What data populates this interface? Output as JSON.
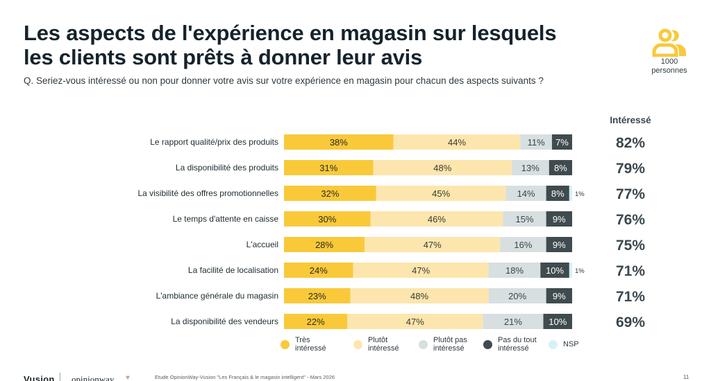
{
  "header": {
    "title_line1": "Les aspects de l'expérience en magasin sur lesquels",
    "title_line2": "les clients sont prêts à donner leur avis",
    "question": "Q. Seriez-vous intéressé ou non pour donner votre avis sur votre expérience en magasin pour chacun des aspects suivants ?",
    "sample_icon": "people-icon",
    "sample_count": "1000",
    "sample_unit": "personnes"
  },
  "colors": {
    "tres_interesse": "#f9c93a",
    "plutot_interesse": "#fde6ad",
    "plutot_pas_interesse": "#d7dfe0",
    "pas_du_tout_interesse": "#3f4b4f",
    "nsp": "#d4f1f9"
  },
  "chart_data": {
    "type": "bar",
    "orientation": "horizontal-stacked",
    "title": "Les aspects de l'expérience en magasin sur lesquels les clients sont prêts à donner leur avis",
    "xlabel": "",
    "ylabel": "",
    "xlim": [
      0,
      100
    ],
    "grid": false,
    "legend_position": "bottom",
    "categories": [
      "Le rapport qualité/prix des produits",
      "La disponibilité des produits",
      "La visibilité des offres promotionnelles",
      "Le temps d'attente en caisse",
      "L'accueil",
      "La facilité de localisation",
      "L'ambiance générale du magasin",
      "La disponibilité des vendeurs"
    ],
    "series": [
      {
        "name": "Très intéressé",
        "key": "tres_interesse",
        "values": [
          38,
          31,
          32,
          30,
          28,
          24,
          23,
          22
        ]
      },
      {
        "name": "Plutôt intéressé",
        "key": "plutot_interesse",
        "values": [
          44,
          48,
          45,
          46,
          47,
          47,
          48,
          47
        ]
      },
      {
        "name": "Plutôt pas intéressé",
        "key": "plutot_pas_interesse",
        "values": [
          11,
          13,
          14,
          15,
          16,
          18,
          20,
          21
        ]
      },
      {
        "name": "Pas du tout intéressé",
        "key": "pas_du_tout_interesse",
        "values": [
          7,
          8,
          8,
          9,
          9,
          10,
          9,
          10
        ]
      },
      {
        "name": "NSP",
        "key": "nsp",
        "values": [
          0,
          0,
          1,
          0,
          0,
          1,
          0,
          0
        ]
      }
    ],
    "totals_header": "Intéressé",
    "totals": [
      82,
      79,
      77,
      76,
      75,
      71,
      71,
      69
    ],
    "value_suffix": "%"
  },
  "legend": [
    {
      "line1": "Très",
      "line2": "intéressé",
      "key": "tres_interesse"
    },
    {
      "line1": "Plutôt",
      "line2": "intéressé",
      "key": "plutot_interesse"
    },
    {
      "line1": "Plutôt pas",
      "line2": "intéressé",
      "key": "plutot_pas_interesse"
    },
    {
      "line1": "Pas du tout",
      "line2": "intéressé",
      "key": "pas_du_tout_interesse"
    },
    {
      "line1": "NSP",
      "line2": "",
      "key": "nsp"
    }
  ],
  "footer": {
    "brand1": "Vusion",
    "brand2": "opinionway",
    "source": "Etude OpinionWay-Vusion \"Les Français & le magasin intelligent\" - Mars 2026",
    "page": "11"
  }
}
